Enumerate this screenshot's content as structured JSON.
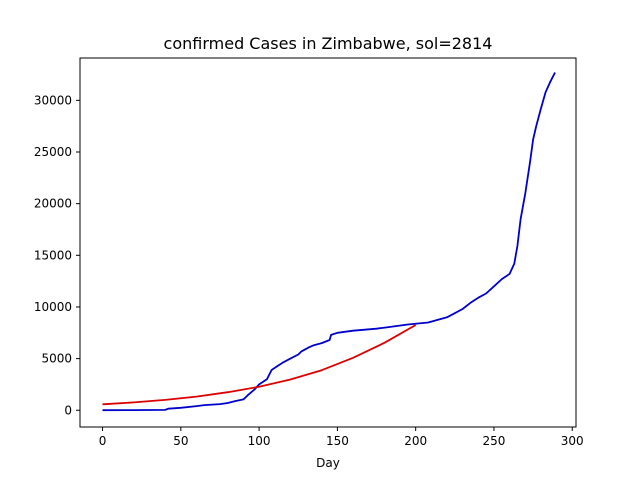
{
  "chart_data": {
    "type": "line",
    "title": "confirmed Cases in Zimbabwe, sol=2814",
    "xlabel": "Day",
    "ylabel": "",
    "xlim": [
      -14.4,
      302.4
    ],
    "ylim": [
      -1620,
      34100
    ],
    "x_ticks": [
      0,
      50,
      100,
      150,
      200,
      250,
      300
    ],
    "y_ticks": [
      0,
      5000,
      10000,
      15000,
      20000,
      25000,
      30000
    ],
    "grid": false,
    "series": [
      {
        "color": "#0000cc",
        "points": [
          [
            0,
            10
          ],
          [
            20,
            20
          ],
          [
            40,
            40
          ],
          [
            42,
            150
          ],
          [
            50,
            240
          ],
          [
            60,
            400
          ],
          [
            65,
            500
          ],
          [
            75,
            600
          ],
          [
            80,
            700
          ],
          [
            85,
            900
          ],
          [
            90,
            1050
          ],
          [
            93,
            1500
          ],
          [
            97,
            2000
          ],
          [
            100,
            2500
          ],
          [
            105,
            3000
          ],
          [
            108,
            3900
          ],
          [
            112,
            4300
          ],
          [
            115,
            4600
          ],
          [
            120,
            5000
          ],
          [
            125,
            5400
          ],
          [
            127,
            5700
          ],
          [
            132,
            6100
          ],
          [
            135,
            6300
          ],
          [
            140,
            6500
          ],
          [
            145,
            6800
          ],
          [
            146,
            7300
          ],
          [
            150,
            7500
          ],
          [
            160,
            7700
          ],
          [
            175,
            7900
          ],
          [
            185,
            8100
          ],
          [
            195,
            8300
          ],
          [
            208,
            8500
          ],
          [
            220,
            9000
          ],
          [
            225,
            9400
          ],
          [
            230,
            9800
          ],
          [
            235,
            10400
          ],
          [
            240,
            10900
          ],
          [
            245,
            11300
          ],
          [
            250,
            12000
          ],
          [
            255,
            12700
          ],
          [
            260,
            13200
          ],
          [
            263,
            14200
          ],
          [
            265,
            15900
          ],
          [
            267,
            18500
          ],
          [
            270,
            21000
          ],
          [
            273,
            24000
          ],
          [
            275,
            26200
          ],
          [
            277,
            27500
          ],
          [
            280,
            29200
          ],
          [
            283,
            30800
          ],
          [
            286,
            31800
          ],
          [
            289,
            32700
          ]
        ]
      },
      {
        "color": "#dd0000",
        "points": [
          [
            0,
            580
          ],
          [
            20,
            760
          ],
          [
            40,
            1000
          ],
          [
            60,
            1320
          ],
          [
            80,
            1750
          ],
          [
            100,
            2270
          ],
          [
            120,
            2980
          ],
          [
            140,
            3880
          ],
          [
            160,
            5080
          ],
          [
            180,
            6530
          ],
          [
            200,
            8250
          ]
        ]
      }
    ]
  }
}
